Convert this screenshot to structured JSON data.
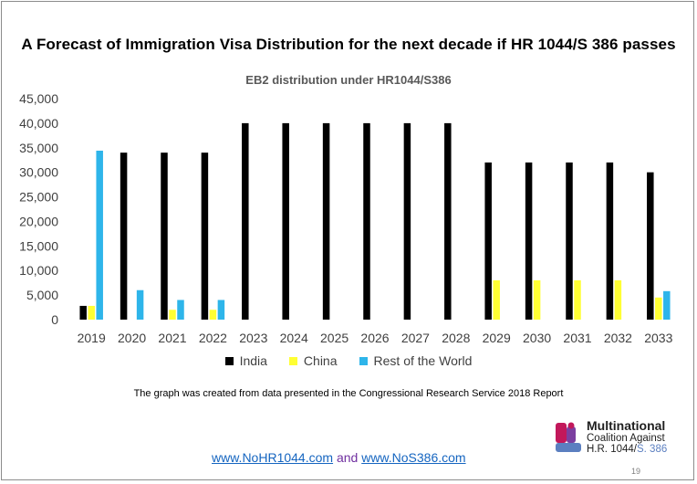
{
  "slide": {
    "title": "A Forecast of Immigration Visa Distribution for the next decade if HR 1044/S 386 passes",
    "source_note": "The graph was created from data presented in the Congressional Research Service 2018 Report",
    "link1": "www.NoHR1044.com",
    "link_and": "and",
    "link2": "www.NoS386.com",
    "logo_line1": "Multinational",
    "logo_line2": "Coalition Against",
    "logo_line3_a": "H.R. 1044/",
    "logo_line3_b": "S. 386",
    "page_number": "19"
  },
  "chart_data": {
    "type": "bar",
    "title": "EB2 distribution under HR1044/S386",
    "xlabel": "",
    "ylabel": "",
    "ylim": [
      0,
      45000
    ],
    "yticks": [
      "0",
      "5,000",
      "10,000",
      "15,000",
      "20,000",
      "25,000",
      "30,000",
      "35,000",
      "40,000",
      "45,000"
    ],
    "grid": false,
    "legend_position": "bottom",
    "categories": [
      "2019",
      "2020",
      "2021",
      "2022",
      "2023",
      "2024",
      "2025",
      "2026",
      "2027",
      "2028",
      "2029",
      "2030",
      "2031",
      "2032",
      "2033"
    ],
    "series": [
      {
        "name": "India",
        "color": "#000000",
        "values": [
          2800,
          34000,
          34000,
          34000,
          40000,
          40000,
          40000,
          40000,
          40000,
          40000,
          32000,
          32000,
          32000,
          32000,
          30000
        ]
      },
      {
        "name": "China",
        "color": "#ffff33",
        "values": [
          2800,
          0,
          2000,
          2000,
          0,
          0,
          0,
          0,
          0,
          0,
          8000,
          8000,
          8000,
          8000,
          4500
        ]
      },
      {
        "name": "Rest of the World",
        "color": "#2eb5ea",
        "values": [
          34400,
          6000,
          4000,
          4000,
          0,
          0,
          0,
          0,
          0,
          0,
          0,
          0,
          0,
          0,
          5800
        ]
      }
    ]
  }
}
